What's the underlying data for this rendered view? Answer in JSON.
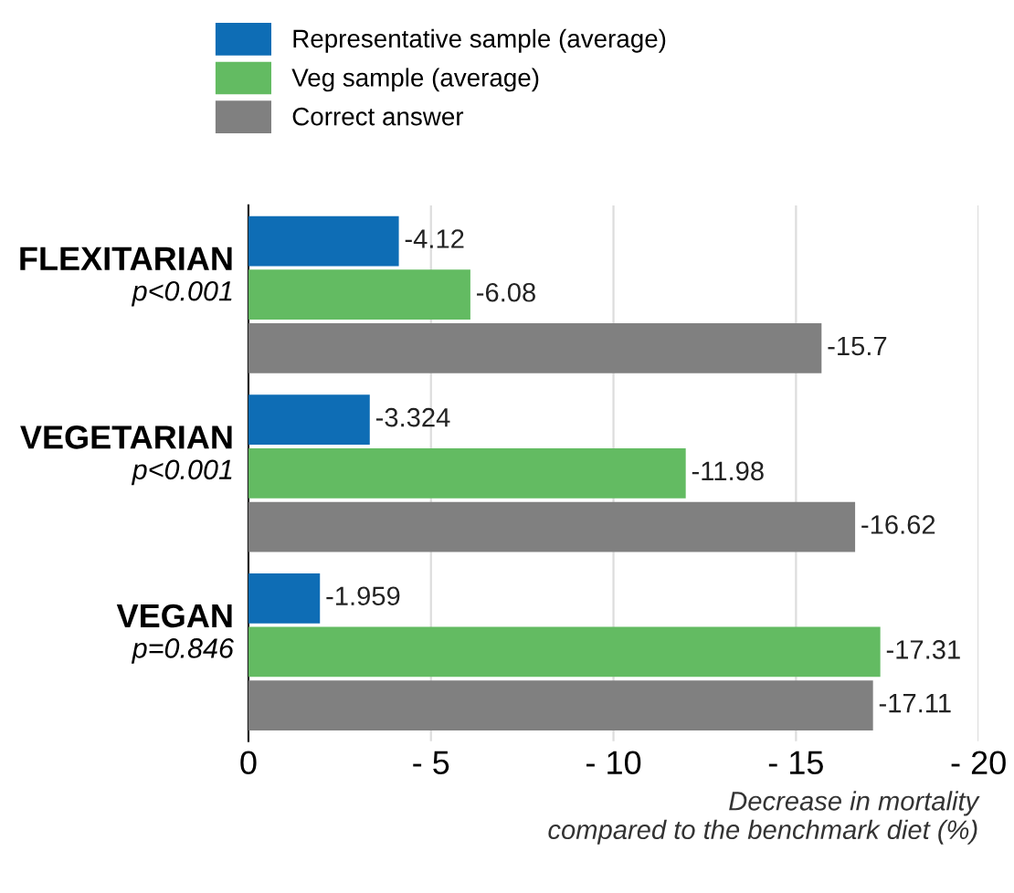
{
  "chart_data": {
    "type": "bar",
    "orientation": "horizontal",
    "categories": [
      "FLEXITARIAN",
      "VEGETARIAN",
      "VEGAN"
    ],
    "series": [
      {
        "name": "Representative sample (average)",
        "color": "#0e6db5",
        "values": [
          -4.12,
          -3.324,
          -1.959
        ]
      },
      {
        "name": "Veg sample (average)",
        "color": "#63bb62",
        "values": [
          -6.08,
          -11.98,
          -17.31
        ]
      },
      {
        "name": "Correct answer",
        "color": "#808080",
        "values": [
          -15.7,
          -16.62,
          -17.11
        ]
      }
    ],
    "xlim": [
      0,
      -20
    ],
    "xticks": [
      0,
      {
        "value": -5,
        "label": "- 5"
      },
      {
        "value": -10,
        "label": "- 10"
      },
      {
        "value": -15,
        "label": "- 15"
      },
      {
        "value": -20,
        "label": "- 20"
      }
    ],
    "xlabel": "Decrease in mortality\ncompared to the benchmark diet (%)",
    "annotations": [
      "p<0.001",
      "p<0.001",
      "p=0.846"
    ],
    "data_labels": true,
    "grid": "x",
    "legend": "top left"
  }
}
